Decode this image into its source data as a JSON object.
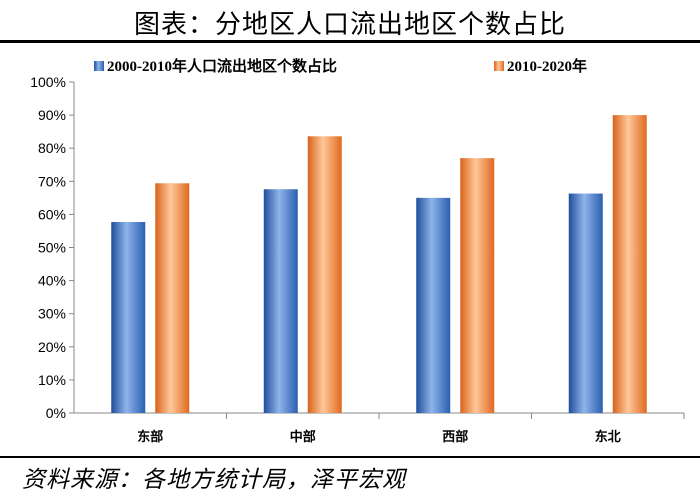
{
  "header": {
    "title": "图表：分地区人口流出地区个数占比"
  },
  "footer": {
    "source": "资料来源：各地方统计局，泽平宏观"
  },
  "colors": {
    "series1": "#3a73c4",
    "series2": "#ee7f2e"
  },
  "chart_data": {
    "type": "bar",
    "title": "图表：分地区人口流出地区个数占比",
    "categories": [
      "东部",
      "中部",
      "西部",
      "东北"
    ],
    "series": [
      {
        "name": "2000-2010年人口流出地区个数占比",
        "values": [
          57.7,
          67.6,
          65.0,
          66.3
        ]
      },
      {
        "name": "2010-2020年",
        "values": [
          69.4,
          83.6,
          77.0,
          90.0
        ]
      }
    ],
    "ylim": [
      0,
      100
    ],
    "yticks": [
      "0%",
      "10%",
      "20%",
      "30%",
      "40%",
      "50%",
      "60%",
      "70%",
      "80%",
      "90%",
      "100%"
    ],
    "grid": false,
    "legend": "top"
  }
}
